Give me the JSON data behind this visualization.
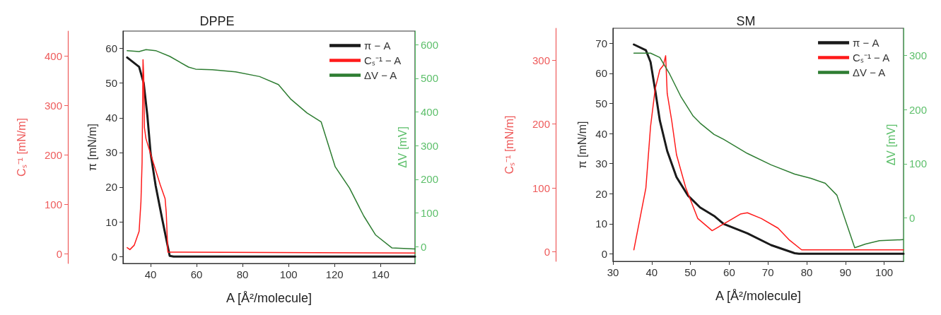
{
  "chart_data": [
    {
      "type": "line",
      "title": "DPPE",
      "xlabel": "A [Å²/molecule]",
      "ylabel": "π [mN/m]",
      "y2label": "ΔV [mV]",
      "y3label": "Cₛ⁻¹ [mN/m]",
      "xlim": [
        28,
        155
      ],
      "xticks": [
        40,
        60,
        80,
        100,
        120,
        140
      ],
      "ylim": [
        -2,
        65
      ],
      "yticks": [
        0,
        10,
        20,
        30,
        40,
        50,
        60
      ],
      "y2lim": [
        -50,
        640
      ],
      "y2ticks": [
        0,
        100,
        200,
        300,
        400,
        500,
        600
      ],
      "y3lim": [
        -20,
        450
      ],
      "y3ticks": [
        0,
        100,
        200,
        300,
        400
      ],
      "grid": false,
      "legend": "top right",
      "marker": "none",
      "line_style": "solid",
      "series": [
        {
          "name": "π − A",
          "color": "#1a1a1a",
          "x": [
            29.8,
            35,
            37,
            38.6,
            40,
            42.2,
            45.2,
            48.3,
            50,
            155
          ],
          "values": [
            57.4,
            54.7,
            50,
            40.6,
            29.8,
            20.4,
            10.3,
            0.2,
            0,
            0
          ]
        },
        {
          "name": "Cₛ⁻¹ − A",
          "color": "#ff1a1a",
          "axis": "y3",
          "x": [
            29.8,
            31,
            32.9,
            35,
            35.8,
            36.3,
            36.7,
            37,
            37.3,
            38,
            41.1,
            44.2,
            46.3,
            46.8,
            47.5,
            50,
            155
          ],
          "values": [
            12,
            8,
            17,
            45,
            105,
            185,
            392,
            360,
            255,
            232,
            185,
            139,
            111,
            83,
            3,
            3,
            1
          ]
        },
        {
          "name": "ΔV − A",
          "color": "#2e7d32",
          "axis": "y2",
          "x": [
            29.8,
            35,
            38,
            42.2,
            48.3,
            56.5,
            59.6,
            66.9,
            77,
            87.4,
            95.6,
            100.8,
            108,
            114.2,
            120.3,
            126.5,
            132.7,
            137.8,
            145,
            155
          ],
          "values": [
            582,
            579,
            585,
            582,
            565,
            533,
            527,
            525,
            519,
            505,
            481,
            439,
            397,
            370,
            237,
            174,
            91,
            35,
            -4,
            -7
          ]
        }
      ]
    },
    {
      "type": "line",
      "title": "SM",
      "xlabel": "A [Å²/molecule]",
      "ylabel": "π [mN/m]",
      "y2label": "ΔV [mV]",
      "y3label": "Cₛ⁻¹ [mN/m]",
      "xlim": [
        30,
        105
      ],
      "xticks": [
        30,
        40,
        50,
        60,
        70,
        80,
        90,
        100
      ],
      "ylim": [
        -2.5,
        75
      ],
      "yticks": [
        0,
        10,
        20,
        30,
        40,
        50,
        60,
        70
      ],
      "y2lim": [
        -80,
        350
      ],
      "y2ticks": [
        0,
        100,
        200,
        300
      ],
      "y3lim": [
        -15,
        350
      ],
      "y3ticks": [
        0,
        100,
        200,
        300
      ],
      "grid": false,
      "legend": "top right",
      "marker": "none",
      "line_style": "solid",
      "series": [
        {
          "name": "π − A",
          "color": "#1a1a1a",
          "x": [
            35.4,
            38.5,
            39.7,
            40.9,
            42.1,
            44,
            46.4,
            49.4,
            52.5,
            56.1,
            58.6,
            64.7,
            70.8,
            76.9,
            78,
            105
          ],
          "values": [
            69.6,
            67.7,
            63.8,
            54.4,
            44.3,
            34.2,
            25.5,
            19.3,
            15.4,
            12.6,
            9.9,
            6.8,
            2.9,
            0.2,
            0,
            0
          ]
        },
        {
          "name": "Cₛ⁻¹ − A",
          "color": "#ff1a1a",
          "axis": "y3",
          "x": [
            35.4,
            38.5,
            39.7,
            40.9,
            42.1,
            43,
            43.6,
            44,
            45.2,
            46.4,
            48.8,
            51.9,
            55.6,
            59.8,
            62.9,
            64.7,
            68.3,
            72.6,
            75.6,
            78.7,
            105
          ],
          "values": [
            3,
            100,
            196,
            255,
            285,
            292,
            307,
            248,
            204,
            152,
            100,
            52,
            33,
            48,
            59,
            61,
            52,
            37,
            18,
            3,
            3
          ]
        },
        {
          "name": "ΔV − A",
          "color": "#2e7d32",
          "axis": "y2",
          "x": [
            35.4,
            39.7,
            42.1,
            44.6,
            47.6,
            50.7,
            52.5,
            56.1,
            58.6,
            64.7,
            70.8,
            76.9,
            81.1,
            84.8,
            87.8,
            92.4,
            95.2,
            98.8,
            104.9
          ],
          "values": [
            304,
            304,
            296,
            266,
            223,
            188,
            175,
            154,
            145,
            119,
            98,
            81,
            73,
            64,
            42,
            -55,
            -48,
            -42,
            -40
          ]
        }
      ]
    }
  ]
}
